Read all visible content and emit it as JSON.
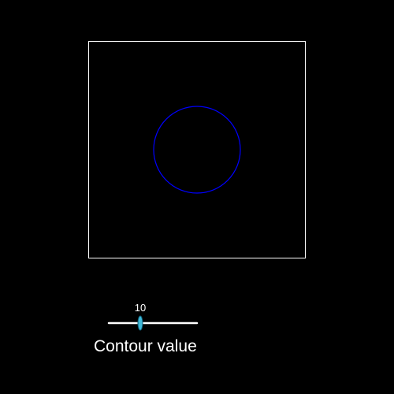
{
  "colors": {
    "background": "#000000",
    "outline": "#ffffff",
    "contour": "#0000ff",
    "slider_track": "#ffffff",
    "slider_handle": "#3fb8d8"
  },
  "slider": {
    "title": "Contour value",
    "value_label": "10",
    "value": 10
  }
}
